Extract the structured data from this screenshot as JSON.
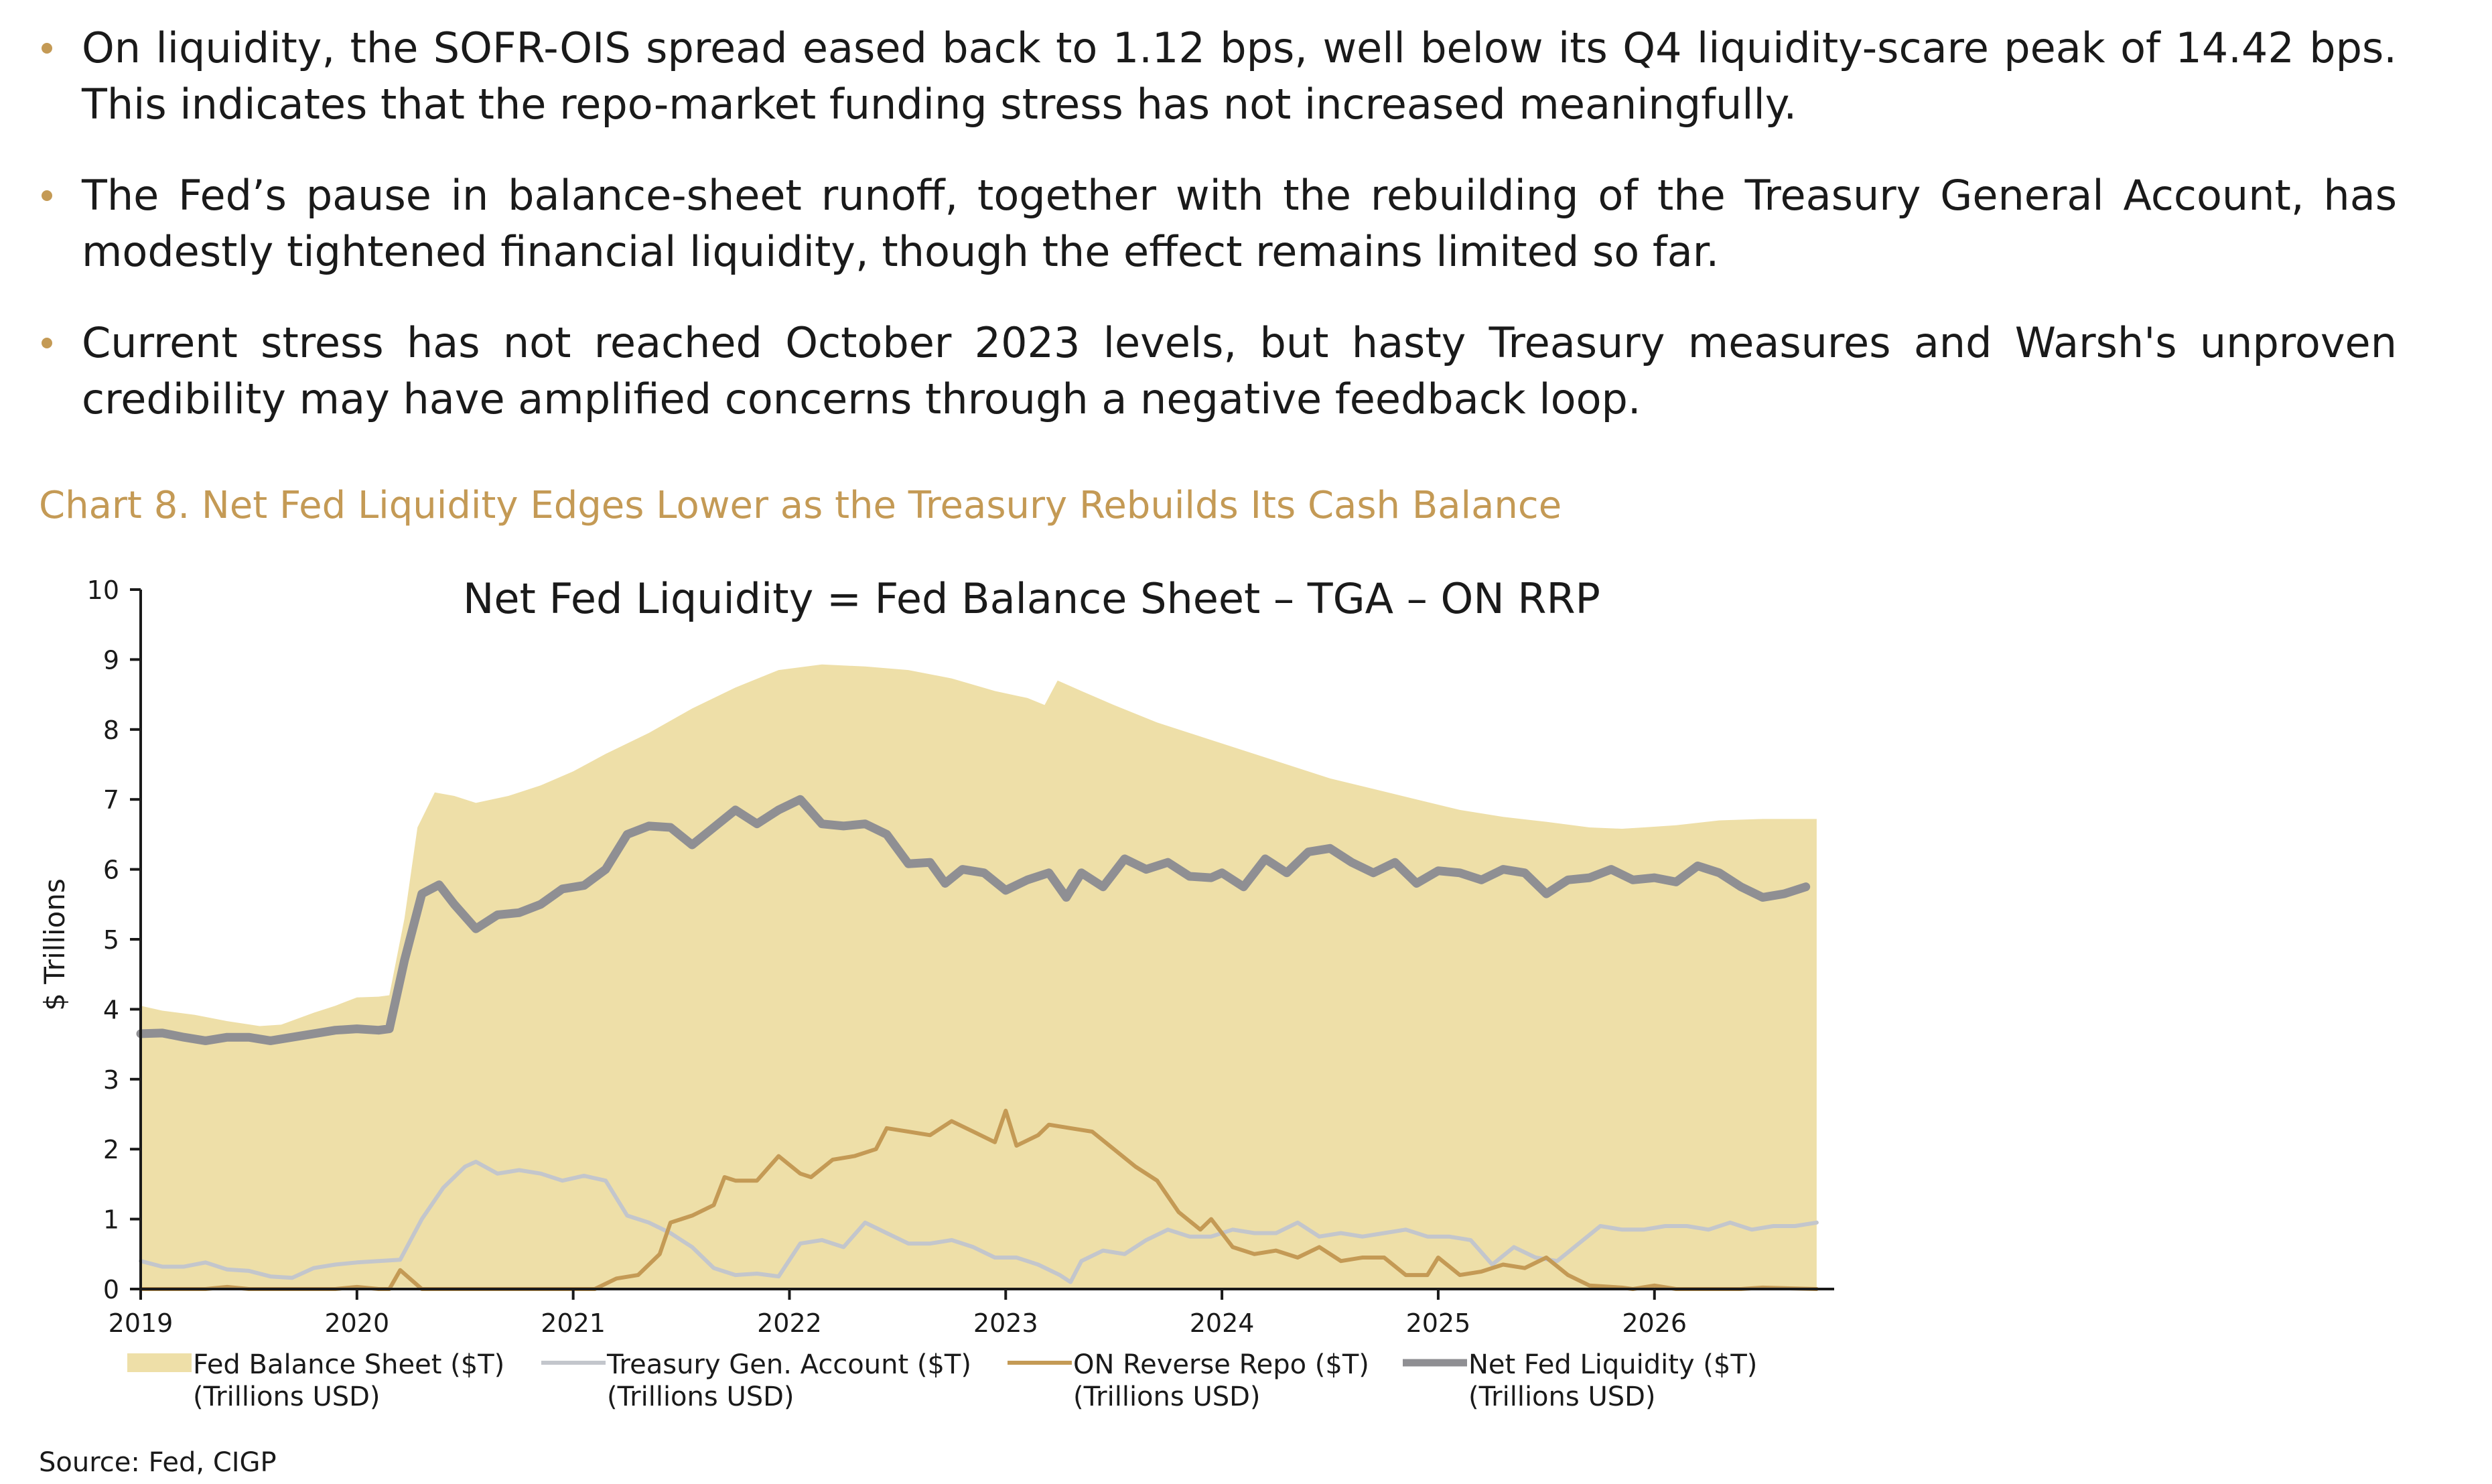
{
  "bullets": [
    "On liquidity, the SOFR-OIS spread eased back to 1.12 bps, well below its Q4 liquidity-scare peak of 14.42 bps. This indicates that the repo-market funding stress has not increased meaningfully.",
    "The Fed’s pause in balance-sheet runoff, together with the rebuilding of the Treasury General Account, has modestly tightened financial liquidity, though the effect remains limited so far.",
    "Current stress has not reached October 2023 levels, but hasty Treasury measures and Warsh's unproven credibility may have amplified concerns through a negative feedback loop."
  ],
  "chart_caption": "Chart 8. Net Fed Liquidity Edges Lower as the Treasury Rebuilds Its Cash Balance",
  "source": "Source: Fed, CIGP",
  "colors": {
    "accent": "#C49A55",
    "fed_balance_sheet": "#EEDFA8",
    "tga": "#C3C6CC",
    "on_rrp": "#C49A55",
    "net_liquidity": "#8F8F93"
  },
  "chart_data": {
    "type": "area",
    "title": "Net Fed Liquidity = Fed Balance Sheet – TGA – ON RRP",
    "ylabel": "$ Trillions",
    "xlabel": "",
    "xlim": [
      2019,
      2026.8
    ],
    "ylim": [
      0,
      10
    ],
    "yticks": [
      0,
      1,
      2,
      3,
      4,
      5,
      6,
      7,
      8,
      9,
      10
    ],
    "xticks": [
      "2019",
      "2020",
      "2021",
      "2022",
      "2023",
      "2024",
      "2025",
      "2026"
    ],
    "grid": false,
    "legend_position": "bottom",
    "series": [
      {
        "name": "Fed Balance Sheet ($T)",
        "unit": "(Trillions USD)",
        "style": "area",
        "points": [
          [
            2019.0,
            4.05
          ],
          [
            2019.1,
            3.98
          ],
          [
            2019.25,
            3.92
          ],
          [
            2019.4,
            3.83
          ],
          [
            2019.55,
            3.76
          ],
          [
            2019.65,
            3.78
          ],
          [
            2019.8,
            3.95
          ],
          [
            2019.9,
            4.05
          ],
          [
            2020.0,
            4.17
          ],
          [
            2020.1,
            4.18
          ],
          [
            2020.15,
            4.2
          ],
          [
            2020.22,
            5.3
          ],
          [
            2020.28,
            6.6
          ],
          [
            2020.36,
            7.1
          ],
          [
            2020.45,
            7.05
          ],
          [
            2020.55,
            6.95
          ],
          [
            2020.7,
            7.05
          ],
          [
            2020.85,
            7.2
          ],
          [
            2021.0,
            7.4
          ],
          [
            2021.15,
            7.65
          ],
          [
            2021.35,
            7.95
          ],
          [
            2021.55,
            8.3
          ],
          [
            2021.75,
            8.6
          ],
          [
            2021.95,
            8.85
          ],
          [
            2022.15,
            8.93
          ],
          [
            2022.35,
            8.9
          ],
          [
            2022.55,
            8.85
          ],
          [
            2022.75,
            8.73
          ],
          [
            2022.95,
            8.55
          ],
          [
            2023.1,
            8.45
          ],
          [
            2023.18,
            8.35
          ],
          [
            2023.24,
            8.7
          ],
          [
            2023.35,
            8.55
          ],
          [
            2023.5,
            8.35
          ],
          [
            2023.7,
            8.1
          ],
          [
            2023.9,
            7.9
          ],
          [
            2024.1,
            7.7
          ],
          [
            2024.3,
            7.5
          ],
          [
            2024.5,
            7.3
          ],
          [
            2024.7,
            7.15
          ],
          [
            2024.9,
            7.0
          ],
          [
            2025.1,
            6.85
          ],
          [
            2025.3,
            6.75
          ],
          [
            2025.5,
            6.68
          ],
          [
            2025.7,
            6.6
          ],
          [
            2025.85,
            6.58
          ],
          [
            2025.95,
            6.6
          ],
          [
            2026.1,
            6.63
          ],
          [
            2026.3,
            6.7
          ],
          [
            2026.5,
            6.72
          ],
          [
            2026.75,
            6.72
          ]
        ]
      },
      {
        "name": "Treasury Gen. Account ($T)",
        "unit": "(Trillions USD)",
        "style": "line",
        "points": [
          [
            2019.0,
            0.4
          ],
          [
            2019.1,
            0.32
          ],
          [
            2019.2,
            0.32
          ],
          [
            2019.3,
            0.38
          ],
          [
            2019.4,
            0.28
          ],
          [
            2019.5,
            0.26
          ],
          [
            2019.6,
            0.18
          ],
          [
            2019.7,
            0.16
          ],
          [
            2019.8,
            0.3
          ],
          [
            2019.9,
            0.35
          ],
          [
            2020.0,
            0.38
          ],
          [
            2020.1,
            0.4
          ],
          [
            2020.2,
            0.42
          ],
          [
            2020.3,
            1.0
          ],
          [
            2020.4,
            1.45
          ],
          [
            2020.5,
            1.75
          ],
          [
            2020.55,
            1.82
          ],
          [
            2020.65,
            1.65
          ],
          [
            2020.75,
            1.7
          ],
          [
            2020.85,
            1.65
          ],
          [
            2020.95,
            1.55
          ],
          [
            2021.05,
            1.62
          ],
          [
            2021.15,
            1.55
          ],
          [
            2021.25,
            1.05
          ],
          [
            2021.35,
            0.95
          ],
          [
            2021.45,
            0.8
          ],
          [
            2021.55,
            0.6
          ],
          [
            2021.65,
            0.3
          ],
          [
            2021.75,
            0.2
          ],
          [
            2021.85,
            0.22
          ],
          [
            2021.95,
            0.18
          ],
          [
            2022.05,
            0.65
          ],
          [
            2022.15,
            0.7
          ],
          [
            2022.25,
            0.6
          ],
          [
            2022.35,
            0.95
          ],
          [
            2022.45,
            0.8
          ],
          [
            2022.55,
            0.65
          ],
          [
            2022.65,
            0.65
          ],
          [
            2022.75,
            0.7
          ],
          [
            2022.85,
            0.6
          ],
          [
            2022.95,
            0.45
          ],
          [
            2023.05,
            0.45
          ],
          [
            2023.15,
            0.35
          ],
          [
            2023.25,
            0.2
          ],
          [
            2023.3,
            0.1
          ],
          [
            2023.35,
            0.4
          ],
          [
            2023.45,
            0.55
          ],
          [
            2023.55,
            0.5
          ],
          [
            2023.65,
            0.7
          ],
          [
            2023.75,
            0.85
          ],
          [
            2023.85,
            0.75
          ],
          [
            2023.95,
            0.75
          ],
          [
            2024.05,
            0.85
          ],
          [
            2024.15,
            0.8
          ],
          [
            2024.25,
            0.8
          ],
          [
            2024.35,
            0.95
          ],
          [
            2024.45,
            0.75
          ],
          [
            2024.55,
            0.8
          ],
          [
            2024.65,
            0.75
          ],
          [
            2024.75,
            0.8
          ],
          [
            2024.85,
            0.85
          ],
          [
            2024.95,
            0.75
          ],
          [
            2025.05,
            0.75
          ],
          [
            2025.15,
            0.7
          ],
          [
            2025.25,
            0.35
          ],
          [
            2025.35,
            0.6
          ],
          [
            2025.45,
            0.45
          ],
          [
            2025.55,
            0.4
          ],
          [
            2025.65,
            0.65
          ],
          [
            2025.75,
            0.9
          ],
          [
            2025.85,
            0.85
          ],
          [
            2025.95,
            0.85
          ],
          [
            2026.05,
            0.9
          ],
          [
            2026.15,
            0.9
          ],
          [
            2026.25,
            0.85
          ],
          [
            2026.35,
            0.95
          ],
          [
            2026.45,
            0.85
          ],
          [
            2026.55,
            0.9
          ],
          [
            2026.65,
            0.9
          ],
          [
            2026.75,
            0.95
          ]
        ]
      },
      {
        "name": "ON Reverse Repo ($T)",
        "unit": "(Trillions USD)",
        "style": "line",
        "points": [
          [
            2019.0,
            0.0
          ],
          [
            2019.3,
            0.0
          ],
          [
            2019.4,
            0.03
          ],
          [
            2019.5,
            0.0
          ],
          [
            2019.9,
            0.0
          ],
          [
            2020.0,
            0.03
          ],
          [
            2020.1,
            0.0
          ],
          [
            2020.15,
            0.0
          ],
          [
            2020.2,
            0.27
          ],
          [
            2020.3,
            0.0
          ],
          [
            2021.0,
            0.0
          ],
          [
            2021.1,
            0.0
          ],
          [
            2021.2,
            0.15
          ],
          [
            2021.3,
            0.2
          ],
          [
            2021.4,
            0.5
          ],
          [
            2021.45,
            0.95
          ],
          [
            2021.55,
            1.05
          ],
          [
            2021.65,
            1.2
          ],
          [
            2021.7,
            1.6
          ],
          [
            2021.75,
            1.55
          ],
          [
            2021.85,
            1.55
          ],
          [
            2021.95,
            1.9
          ],
          [
            2022.05,
            1.65
          ],
          [
            2022.1,
            1.6
          ],
          [
            2022.2,
            1.85
          ],
          [
            2022.3,
            1.9
          ],
          [
            2022.4,
            2.0
          ],
          [
            2022.45,
            2.3
          ],
          [
            2022.55,
            2.25
          ],
          [
            2022.65,
            2.2
          ],
          [
            2022.75,
            2.4
          ],
          [
            2022.85,
            2.25
          ],
          [
            2022.95,
            2.1
          ],
          [
            2023.0,
            2.55
          ],
          [
            2023.05,
            2.05
          ],
          [
            2023.15,
            2.2
          ],
          [
            2023.2,
            2.35
          ],
          [
            2023.3,
            2.3
          ],
          [
            2023.4,
            2.25
          ],
          [
            2023.5,
            2.0
          ],
          [
            2023.6,
            1.75
          ],
          [
            2023.7,
            1.55
          ],
          [
            2023.8,
            1.1
          ],
          [
            2023.9,
            0.85
          ],
          [
            2023.95,
            1.0
          ],
          [
            2024.05,
            0.6
          ],
          [
            2024.15,
            0.5
          ],
          [
            2024.25,
            0.55
          ],
          [
            2024.35,
            0.45
          ],
          [
            2024.45,
            0.6
          ],
          [
            2024.55,
            0.4
          ],
          [
            2024.65,
            0.45
          ],
          [
            2024.75,
            0.45
          ],
          [
            2024.85,
            0.2
          ],
          [
            2024.95,
            0.2
          ],
          [
            2025.0,
            0.45
          ],
          [
            2025.1,
            0.2
          ],
          [
            2025.2,
            0.25
          ],
          [
            2025.3,
            0.35
          ],
          [
            2025.4,
            0.3
          ],
          [
            2025.5,
            0.45
          ],
          [
            2025.6,
            0.2
          ],
          [
            2025.7,
            0.05
          ],
          [
            2025.85,
            0.02
          ],
          [
            2025.9,
            0.0
          ],
          [
            2026.0,
            0.05
          ],
          [
            2026.1,
            0.0
          ],
          [
            2026.4,
            0.0
          ],
          [
            2026.5,
            0.02
          ],
          [
            2026.75,
            0.0
          ]
        ]
      },
      {
        "name": "Net Fed Liquidity ($T)",
        "unit": "(Trillions USD)",
        "style": "line",
        "points": [
          [
            2019.0,
            3.65
          ],
          [
            2019.1,
            3.66
          ],
          [
            2019.2,
            3.6
          ],
          [
            2019.3,
            3.55
          ],
          [
            2019.4,
            3.6
          ],
          [
            2019.5,
            3.6
          ],
          [
            2019.6,
            3.55
          ],
          [
            2019.7,
            3.6
          ],
          [
            2019.8,
            3.65
          ],
          [
            2019.9,
            3.7
          ],
          [
            2020.0,
            3.72
          ],
          [
            2020.1,
            3.7
          ],
          [
            2020.15,
            3.72
          ],
          [
            2020.22,
            4.7
          ],
          [
            2020.3,
            5.65
          ],
          [
            2020.38,
            5.78
          ],
          [
            2020.45,
            5.5
          ],
          [
            2020.55,
            5.15
          ],
          [
            2020.65,
            5.35
          ],
          [
            2020.75,
            5.38
          ],
          [
            2020.85,
            5.5
          ],
          [
            2020.95,
            5.72
          ],
          [
            2021.05,
            5.77
          ],
          [
            2021.15,
            6.0
          ],
          [
            2021.25,
            6.5
          ],
          [
            2021.35,
            6.62
          ],
          [
            2021.45,
            6.6
          ],
          [
            2021.55,
            6.35
          ],
          [
            2021.65,
            6.6
          ],
          [
            2021.75,
            6.85
          ],
          [
            2021.85,
            6.65
          ],
          [
            2021.95,
            6.85
          ],
          [
            2022.05,
            7.0
          ],
          [
            2022.15,
            6.65
          ],
          [
            2022.25,
            6.62
          ],
          [
            2022.35,
            6.65
          ],
          [
            2022.45,
            6.5
          ],
          [
            2022.55,
            6.08
          ],
          [
            2022.65,
            6.1
          ],
          [
            2022.72,
            5.8
          ],
          [
            2022.8,
            6.0
          ],
          [
            2022.9,
            5.95
          ],
          [
            2023.0,
            5.7
          ],
          [
            2023.1,
            5.85
          ],
          [
            2023.2,
            5.95
          ],
          [
            2023.28,
            5.6
          ],
          [
            2023.35,
            5.95
          ],
          [
            2023.45,
            5.75
          ],
          [
            2023.55,
            6.15
          ],
          [
            2023.65,
            6.0
          ],
          [
            2023.75,
            6.1
          ],
          [
            2023.85,
            5.9
          ],
          [
            2023.95,
            5.88
          ],
          [
            2024.0,
            5.95
          ],
          [
            2024.1,
            5.75
          ],
          [
            2024.2,
            6.15
          ],
          [
            2024.3,
            5.95
          ],
          [
            2024.4,
            6.25
          ],
          [
            2024.5,
            6.3
          ],
          [
            2024.6,
            6.1
          ],
          [
            2024.7,
            5.95
          ],
          [
            2024.8,
            6.1
          ],
          [
            2024.9,
            5.8
          ],
          [
            2025.0,
            5.98
          ],
          [
            2025.1,
            5.95
          ],
          [
            2025.2,
            5.85
          ],
          [
            2025.3,
            6.0
          ],
          [
            2025.4,
            5.95
          ],
          [
            2025.5,
            5.65
          ],
          [
            2025.6,
            5.85
          ],
          [
            2025.7,
            5.88
          ],
          [
            2025.8,
            6.0
          ],
          [
            2025.9,
            5.85
          ],
          [
            2026.0,
            5.88
          ],
          [
            2026.1,
            5.82
          ],
          [
            2026.2,
            6.05
          ],
          [
            2026.3,
            5.95
          ],
          [
            2026.4,
            5.75
          ],
          [
            2026.5,
            5.6
          ],
          [
            2026.6,
            5.65
          ],
          [
            2026.7,
            5.75
          ]
        ]
      }
    ]
  }
}
